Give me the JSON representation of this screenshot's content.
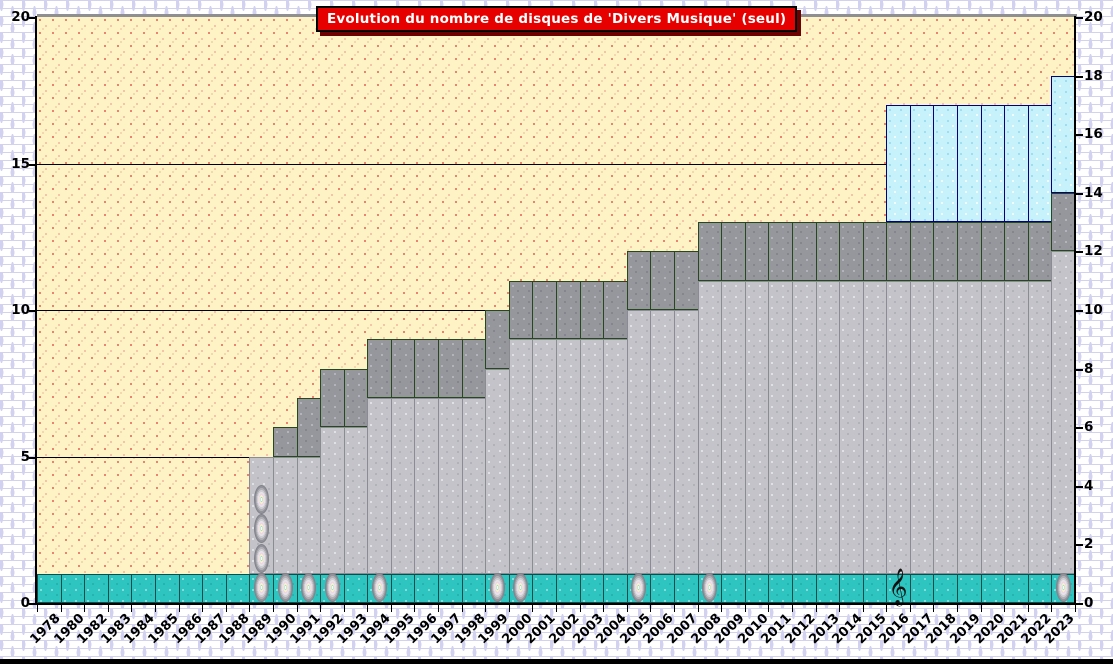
{
  "title": "Evolution du nombre de disques de 'Divers Musique' (seul)",
  "chart_data": {
    "type": "bar",
    "stacked": true,
    "title": "Evolution du nombre de disques de 'Divers Musique' (seul)",
    "xlabel": "",
    "ylabel": "",
    "ylim": [
      0,
      20
    ],
    "grid": true,
    "gridlines": [
      5,
      10,
      15
    ],
    "left_axis_ticks": [
      0,
      5,
      10,
      15,
      20
    ],
    "right_axis_ticks": [
      0,
      2,
      4,
      6,
      8,
      10,
      12,
      14,
      16,
      18,
      20
    ],
    "legend": "none",
    "categories": [
      "1978",
      "1980",
      "1982",
      "1983",
      "1984",
      "1985",
      "1986",
      "1987",
      "1988",
      "1989",
      "1990",
      "1991",
      "1992",
      "1993",
      "1994",
      "1995",
      "1996",
      "1997",
      "1998",
      "1999",
      "2000",
      "2001",
      "2002",
      "2003",
      "2004",
      "2005",
      "2006",
      "2007",
      "2008",
      "2009",
      "2010",
      "2011",
      "2012",
      "2013",
      "2014",
      "2015",
      "2016",
      "2017",
      "2018",
      "2019",
      "2020",
      "2021",
      "2022",
      "2023"
    ],
    "totals": [
      1,
      1,
      1,
      1,
      1,
      1,
      1,
      1,
      1,
      5,
      6,
      7,
      8,
      8,
      9,
      9,
      9,
      9,
      9,
      10,
      11,
      11,
      11,
      11,
      11,
      12,
      12,
      12,
      13,
      13,
      13,
      13,
      13,
      13,
      13,
      13,
      17,
      17,
      17,
      17,
      17,
      17,
      17,
      18
    ],
    "series": [
      {
        "name": "teal-base-band",
        "color": "#2ec5c1",
        "border": "#0a4f4c",
        "values": [
          1,
          1,
          1,
          1,
          1,
          1,
          1,
          1,
          1,
          1,
          1,
          1,
          1,
          1,
          1,
          1,
          1,
          1,
          1,
          1,
          1,
          1,
          1,
          1,
          1,
          1,
          1,
          1,
          1,
          1,
          1,
          1,
          1,
          1,
          1,
          1,
          1,
          1,
          1,
          1,
          1,
          1,
          1,
          1
        ]
      },
      {
        "name": "light-gray-band",
        "color": "#c3c3c9",
        "border": "#8b8b93",
        "values": [
          0,
          0,
          0,
          0,
          0,
          0,
          0,
          0,
          0,
          4,
          4,
          4,
          5,
          5,
          6,
          6,
          6,
          6,
          6,
          7,
          8,
          8,
          8,
          8,
          8,
          9,
          9,
          9,
          10,
          10,
          10,
          10,
          10,
          10,
          10,
          10,
          10,
          10,
          10,
          10,
          10,
          10,
          10,
          11
        ]
      },
      {
        "name": "dark-gray-band",
        "color": "#96969d",
        "border": "#25481f",
        "values": [
          0,
          0,
          0,
          0,
          0,
          0,
          0,
          0,
          0,
          0,
          1,
          2,
          2,
          2,
          2,
          2,
          2,
          2,
          2,
          2,
          2,
          2,
          2,
          2,
          2,
          2,
          2,
          2,
          2,
          2,
          2,
          2,
          2,
          2,
          2,
          2,
          2,
          2,
          2,
          2,
          2,
          2,
          2,
          2
        ]
      },
      {
        "name": "light-cyan-band",
        "color": "#c8f2fb",
        "border": "#000080",
        "values": [
          0,
          0,
          0,
          0,
          0,
          0,
          0,
          0,
          0,
          0,
          0,
          0,
          0,
          0,
          0,
          0,
          0,
          0,
          0,
          0,
          0,
          0,
          0,
          0,
          0,
          0,
          0,
          0,
          0,
          0,
          0,
          0,
          0,
          0,
          0,
          0,
          4,
          4,
          4,
          4,
          4,
          4,
          4,
          4
        ]
      }
    ],
    "markers": [
      {
        "category": "1989",
        "icon": "cd",
        "count": 4
      },
      {
        "category": "1990",
        "icon": "cd",
        "count": 1
      },
      {
        "category": "1991",
        "icon": "cd",
        "count": 1
      },
      {
        "category": "1992",
        "icon": "cd",
        "count": 1
      },
      {
        "category": "1994",
        "icon": "cd",
        "count": 1
      },
      {
        "category": "1999",
        "icon": "cd",
        "count": 1
      },
      {
        "category": "2000",
        "icon": "cd",
        "count": 1
      },
      {
        "category": "2005",
        "icon": "cd",
        "count": 1
      },
      {
        "category": "2008",
        "icon": "cd",
        "count": 1
      },
      {
        "category": "2016",
        "icon": "treble-clef",
        "count": 1,
        "glyph": "𝄞"
      },
      {
        "category": "2023",
        "icon": "cd",
        "count": 1
      }
    ]
  },
  "colors": {
    "title_bg": "#e60000",
    "title_text": "#ffffff",
    "title_shadow": "#6d0000",
    "title_border": "#000000",
    "outer_brick_line": "#d2d2f0",
    "outer_bg": "#ffffff",
    "plot_bg": "#fdf3c4",
    "plot_dots": "#ee8170",
    "axis": "#000000",
    "plot_top_line": "#8f8f93"
  }
}
